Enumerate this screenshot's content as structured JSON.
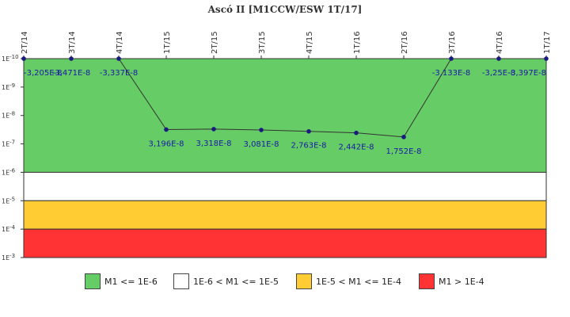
{
  "chart_data": {
    "type": "line",
    "title": "Ascó II [M1CCW/ESW 1T/17]",
    "y_scale": "log",
    "y_axis_inverted": true,
    "ylim": [
      1e-10,
      0.001
    ],
    "y_ticks": [
      "1E-10",
      "1E-9",
      "1E-8",
      "1E-7",
      "1E-6",
      "1E-5",
      "1E-4",
      "1E-3"
    ],
    "categories": [
      "2T/14",
      "3T/14",
      "4T/14",
      "1T/15",
      "2T/15",
      "3T/15",
      "4T/15",
      "1T/16",
      "2T/16",
      "3T/16",
      "4T/16",
      "1T/17"
    ],
    "series": [
      {
        "values": [
          -3.205e-08,
          -3.471e-08,
          -3.337e-08,
          3.196e-08,
          3.318e-08,
          3.081e-08,
          2.763e-08,
          2.442e-08,
          1.752e-08,
          -3.133e-08,
          -3.25e-08,
          -3.397e-08
        ],
        "labels": [
          "-3,205E-8",
          "-3,471E-8",
          "-3,337E-8",
          "3,196E-8",
          "3,318E-8",
          "3,081E-8",
          "2,763E-8",
          "2,442E-8",
          "1,752E-8",
          "-3,133E-8",
          "-3,25E-8",
          "-3,397E-8"
        ]
      }
    ],
    "bands": [
      {
        "from": 1e-10,
        "to": 1e-06,
        "color": "#66cc66",
        "label": "M1 <= 1E-6"
      },
      {
        "from": 1e-06,
        "to": 1e-05,
        "color": "#ffffff",
        "label": "1E-6 < M1 <= 1E-5"
      },
      {
        "from": 1e-05,
        "to": 0.0001,
        "color": "#ffcc33",
        "label": "1E-5 < M1 <= 1E-4"
      },
      {
        "from": 0.0001,
        "to": 0.001,
        "color": "#ff3333",
        "label": "M1 > 1E-4"
      }
    ],
    "grid": false,
    "legend_position": "bottom",
    "line_color": "#333333",
    "marker_color": "#1a1a80",
    "label_color": "#1a1aa6"
  }
}
